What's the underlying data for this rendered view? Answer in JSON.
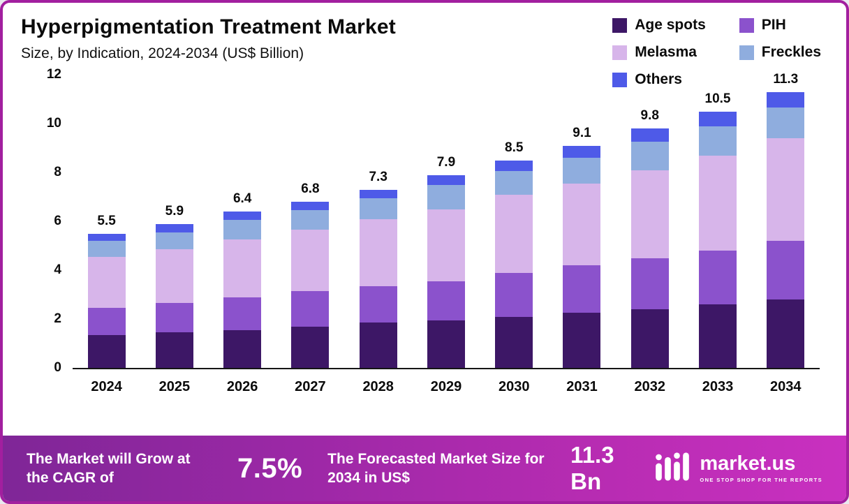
{
  "header": {
    "title": "Hyperpigmentation Treatment Market",
    "subtitle": "Size, by Indication, 2024-2034 (US$ Billion)"
  },
  "chart_data": {
    "type": "bar",
    "stacked": true,
    "title": "Hyperpigmentation Treatment Market Size, by Indication, 2024-2034 (US$ Billion)",
    "xlabel": "",
    "ylabel": "",
    "ylim": [
      0,
      12
    ],
    "yticks": [
      0,
      2,
      4,
      6,
      8,
      10,
      12
    ],
    "grid": false,
    "legend_position": "top-right",
    "categories": [
      "2024",
      "2025",
      "2026",
      "2027",
      "2028",
      "2029",
      "2030",
      "2031",
      "2032",
      "2033",
      "2034"
    ],
    "series": [
      {
        "name": "Age spots",
        "color": "#3d1766",
        "values": [
          1.35,
          1.45,
          1.55,
          1.7,
          1.85,
          1.95,
          2.1,
          2.25,
          2.4,
          2.6,
          2.8
        ]
      },
      {
        "name": "PIH",
        "color": "#8b52cc",
        "values": [
          1.1,
          1.2,
          1.35,
          1.45,
          1.5,
          1.6,
          1.8,
          1.95,
          2.1,
          2.2,
          2.4
        ]
      },
      {
        "name": "Melasma",
        "color": "#d7b5ea",
        "values": [
          2.1,
          2.2,
          2.35,
          2.5,
          2.75,
          2.95,
          3.2,
          3.35,
          3.6,
          3.9,
          4.2
        ]
      },
      {
        "name": "Freckles",
        "color": "#8fadde",
        "values": [
          0.65,
          0.7,
          0.8,
          0.8,
          0.85,
          1.0,
          0.95,
          1.05,
          1.15,
          1.2,
          1.25
        ]
      },
      {
        "name": "Others",
        "color": "#4e5ae8",
        "values": [
          0.3,
          0.35,
          0.35,
          0.35,
          0.35,
          0.4,
          0.45,
          0.5,
          0.55,
          0.6,
          0.65
        ]
      }
    ],
    "totals": [
      "5.5",
      "5.9",
      "6.4",
      "6.8",
      "7.3",
      "7.9",
      "8.5",
      "9.1",
      "9.8",
      "10.5",
      "11.3"
    ]
  },
  "footer": {
    "cagr_label": "The Market will Grow at the CAGR of",
    "cagr_value": "7.5%",
    "forecast_label": "The Forecasted Market Size for 2034 in US$",
    "forecast_value": "11.3 Bn",
    "brand": {
      "name": "market.us",
      "tagline": "ONE STOP SHOP FOR THE REPORTS"
    }
  }
}
